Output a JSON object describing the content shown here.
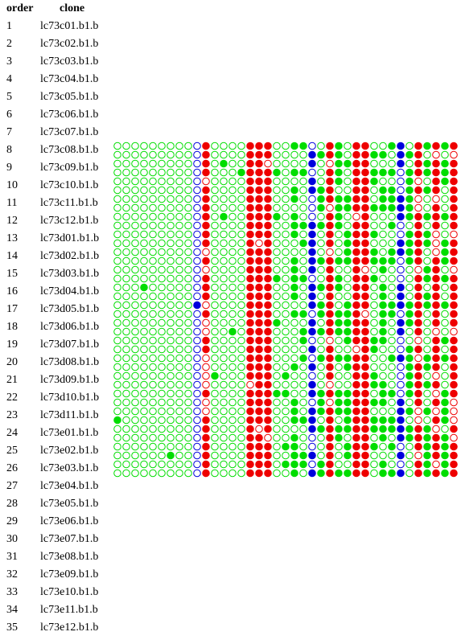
{
  "table": {
    "header": {
      "order": "order",
      "clone": "clone"
    },
    "rows": [
      {
        "order": 1,
        "clone": "lc73c01.b1.b"
      },
      {
        "order": 2,
        "clone": "lc73c02.b1.b"
      },
      {
        "order": 3,
        "clone": "lc73c03.b1.b"
      },
      {
        "order": 4,
        "clone": "lc73c04.b1.b"
      },
      {
        "order": 5,
        "clone": "lc73c05.b1.b"
      },
      {
        "order": 6,
        "clone": "lc73c06.b1.b"
      },
      {
        "order": 7,
        "clone": "lc73c07.b1.b"
      },
      {
        "order": 8,
        "clone": "lc73c08.b1.b"
      },
      {
        "order": 9,
        "clone": "lc73c09.b1.b"
      },
      {
        "order": 10,
        "clone": "lc73c10.b1.b"
      },
      {
        "order": 11,
        "clone": "lc73c11.b1.b"
      },
      {
        "order": 12,
        "clone": "lc73c12.b1.b"
      },
      {
        "order": 13,
        "clone": "lc73d01.b1.b"
      },
      {
        "order": 14,
        "clone": "lc73d02.b1.b"
      },
      {
        "order": 15,
        "clone": "lc73d03.b1.b"
      },
      {
        "order": 16,
        "clone": "lc73d04.b1.b"
      },
      {
        "order": 17,
        "clone": "lc73d05.b1.b"
      },
      {
        "order": 18,
        "clone": "lc73d06.b1.b"
      },
      {
        "order": 19,
        "clone": "lc73d07.b1.b"
      },
      {
        "order": 20,
        "clone": "lc73d08.b1.b"
      },
      {
        "order": 21,
        "clone": "lc73d09.b1.b"
      },
      {
        "order": 22,
        "clone": "lc73d10.b1.b"
      },
      {
        "order": 23,
        "clone": "lc73d11.b1.b"
      },
      {
        "order": 24,
        "clone": "lc73e01.b1.b"
      },
      {
        "order": 25,
        "clone": "lc73e02.b1.b"
      },
      {
        "order": 26,
        "clone": "lc73e03.b1.b"
      },
      {
        "order": 27,
        "clone": "lc73e04.b1.b"
      },
      {
        "order": 28,
        "clone": "lc73e05.b1.b"
      },
      {
        "order": 29,
        "clone": "lc73e06.b1.b"
      },
      {
        "order": 30,
        "clone": "lc73e07.b1.b"
      },
      {
        "order": 31,
        "clone": "lc73e08.b1.b"
      },
      {
        "order": 32,
        "clone": "lc73e09.b1.b"
      },
      {
        "order": 33,
        "clone": "lc73e10.b1.b"
      },
      {
        "order": 34,
        "clone": "lc73e11.b1.b"
      },
      {
        "order": 35,
        "clone": "lc73e12.b1.b"
      }
    ]
  }
}
